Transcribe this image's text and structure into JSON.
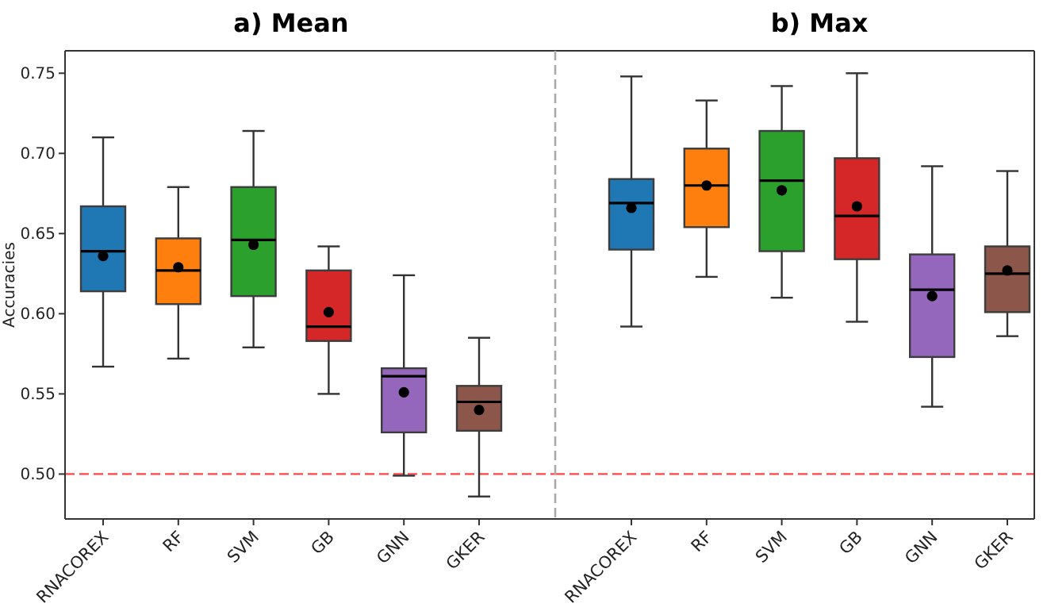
{
  "chart_data": [
    {
      "type": "box",
      "title": "a) Mean",
      "ylabel": "Accuracies",
      "categories": [
        "RNACOREX",
        "RF",
        "SVM",
        "GB",
        "GNN",
        "GKER"
      ],
      "colors": [
        "#1f77b4",
        "#ff7f0e",
        "#2ca02c",
        "#d62728",
        "#9467bd",
        "#8c564b"
      ],
      "boxes": [
        {
          "low": 0.567,
          "q1": 0.614,
          "median": 0.639,
          "q3": 0.667,
          "high": 0.71,
          "mean": 0.636
        },
        {
          "low": 0.572,
          "q1": 0.606,
          "median": 0.627,
          "q3": 0.647,
          "high": 0.679,
          "mean": 0.629
        },
        {
          "low": 0.579,
          "q1": 0.611,
          "median": 0.646,
          "q3": 0.679,
          "high": 0.714,
          "mean": 0.643
        },
        {
          "low": 0.55,
          "q1": 0.583,
          "median": 0.592,
          "q3": 0.627,
          "high": 0.642,
          "mean": 0.601
        },
        {
          "low": 0.499,
          "q1": 0.526,
          "median": 0.561,
          "q3": 0.566,
          "high": 0.624,
          "mean": 0.551
        },
        {
          "low": 0.486,
          "q1": 0.527,
          "median": 0.545,
          "q3": 0.555,
          "high": 0.585,
          "mean": 0.54
        }
      ],
      "ylim": [
        0.472,
        0.764
      ],
      "yticks": [
        {
          "value": 0.5,
          "label": "0.50"
        },
        {
          "value": 0.55,
          "label": "0.55"
        },
        {
          "value": 0.6,
          "label": "0.60"
        },
        {
          "value": 0.65,
          "label": "0.65"
        },
        {
          "value": 0.7,
          "label": "0.70"
        },
        {
          "value": 0.75,
          "label": "0.75"
        }
      ],
      "ref_lines": [
        {
          "axis": "y",
          "value": 0.5,
          "color": "#ff4444",
          "line_style": "dashed"
        }
      ],
      "grid": false
    },
    {
      "type": "box",
      "title": "b) Max",
      "categories": [
        "RNACOREX",
        "RF",
        "SVM",
        "GB",
        "GNN",
        "GKER"
      ],
      "colors": [
        "#1f77b4",
        "#ff7f0e",
        "#2ca02c",
        "#d62728",
        "#9467bd",
        "#8c564b"
      ],
      "boxes": [
        {
          "low": 0.592,
          "q1": 0.64,
          "median": 0.669,
          "q3": 0.684,
          "high": 0.748,
          "mean": 0.666
        },
        {
          "low": 0.623,
          "q1": 0.654,
          "median": 0.68,
          "q3": 0.703,
          "high": 0.733,
          "mean": 0.68
        },
        {
          "low": 0.61,
          "q1": 0.639,
          "median": 0.683,
          "q3": 0.714,
          "high": 0.742,
          "mean": 0.677
        },
        {
          "low": 0.595,
          "q1": 0.634,
          "median": 0.661,
          "q3": 0.697,
          "high": 0.75,
          "mean": 0.667
        },
        {
          "low": 0.542,
          "q1": 0.573,
          "median": 0.615,
          "q3": 0.637,
          "high": 0.692,
          "mean": 0.611
        },
        {
          "low": 0.586,
          "q1": 0.601,
          "median": 0.625,
          "q3": 0.642,
          "high": 0.689,
          "mean": 0.627
        }
      ],
      "ylim": [
        0.472,
        0.764
      ],
      "ref_lines": [
        {
          "axis": "y",
          "value": 0.5,
          "color": "#ff4444",
          "line_style": "dashed"
        }
      ],
      "tick_labels": "x",
      "grid": false
    }
  ]
}
